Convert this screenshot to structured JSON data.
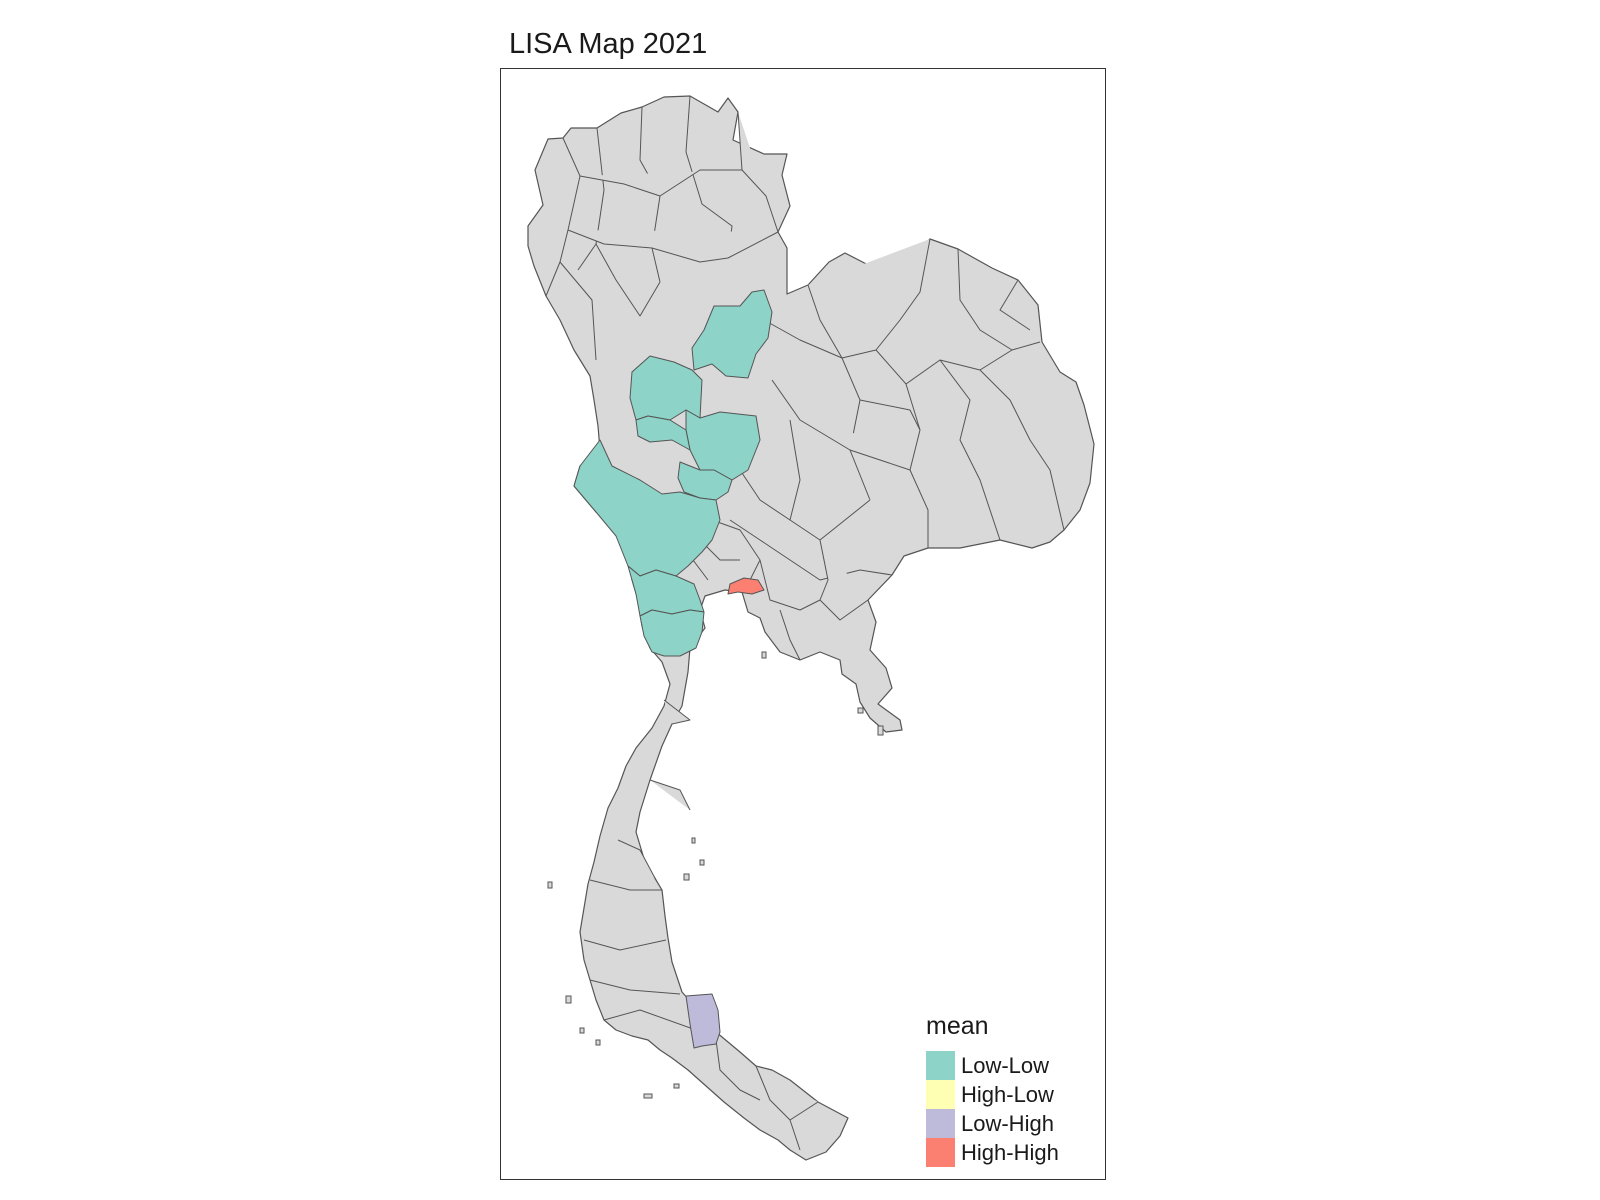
{
  "title": "LISA Map 2021",
  "legend": {
    "title": "mean",
    "items": [
      {
        "label": "Low-Low",
        "color": "#8dd3c7"
      },
      {
        "label": "High-Low",
        "color": "#ffffb3"
      },
      {
        "label": "Low-High",
        "color": "#bebada"
      },
      {
        "label": "High-High",
        "color": "#fb8072"
      }
    ]
  },
  "colors": {
    "no_cluster": "#d9d9d9",
    "border": "#555555",
    "frame": "#333333"
  }
}
